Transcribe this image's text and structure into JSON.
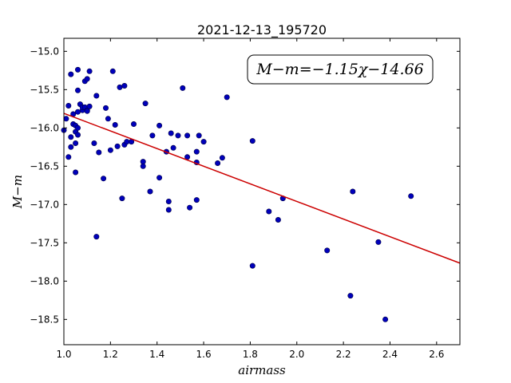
{
  "chart_data": {
    "type": "scatter",
    "title": "2021-12-13_195720",
    "xlabel": "airmass",
    "ylabel": "M−m",
    "xlim": [
      1.0,
      2.7
    ],
    "ylim": [
      -18.83,
      -14.83
    ],
    "y_inverted": true,
    "xticks": [
      1.0,
      1.2,
      1.4,
      1.6,
      1.8,
      2.0,
      2.2,
      2.4,
      2.6
    ],
    "xtick_labels": [
      "1.0",
      "1.2",
      "1.4",
      "1.6",
      "1.8",
      "2.0",
      "2.2",
      "2.4",
      "2.6"
    ],
    "yticks": [
      -15.0,
      -15.5,
      -16.0,
      -16.5,
      -17.0,
      -17.5,
      -18.0,
      -18.5
    ],
    "ytick_labels": [
      "−15.0",
      "−15.5",
      "−16.0",
      "−16.5",
      "−17.0",
      "−17.5",
      "−18.0",
      "−18.5"
    ],
    "grid": false,
    "fit_annotation": "M−m=−1.15χ−14.66",
    "fit_line": {
      "slope": -1.15,
      "intercept": -14.66,
      "color": "#cc0000"
    },
    "point_color": "#0000bb",
    "points": [
      [
        1.0,
        -16.03
      ],
      [
        1.01,
        -15.88
      ],
      [
        1.02,
        -15.71
      ],
      [
        1.02,
        -16.38
      ],
      [
        1.03,
        -16.12
      ],
      [
        1.03,
        -16.25
      ],
      [
        1.03,
        -15.3
      ],
      [
        1.04,
        -15.95
      ],
      [
        1.04,
        -15.82
      ],
      [
        1.05,
        -15.97
      ],
      [
        1.05,
        -16.05
      ],
      [
        1.05,
        -16.2
      ],
      [
        1.05,
        -16.58
      ],
      [
        1.06,
        -15.79
      ],
      [
        1.06,
        -15.51
      ],
      [
        1.06,
        -16.09
      ],
      [
        1.06,
        -16.0
      ],
      [
        1.06,
        -15.24
      ],
      [
        1.07,
        -15.69
      ],
      [
        1.08,
        -15.77
      ],
      [
        1.08,
        -15.73
      ],
      [
        1.09,
        -15.39
      ],
      [
        1.09,
        -15.73
      ],
      [
        1.1,
        -15.77
      ],
      [
        1.1,
        -15.78
      ],
      [
        1.1,
        -15.36
      ],
      [
        1.11,
        -15.72
      ],
      [
        1.11,
        -15.26
      ],
      [
        1.13,
        -16.2
      ],
      [
        1.14,
        -15.58
      ],
      [
        1.14,
        -17.42
      ],
      [
        1.15,
        -16.32
      ],
      [
        1.17,
        -16.66
      ],
      [
        1.18,
        -15.74
      ],
      [
        1.19,
        -15.88
      ],
      [
        1.2,
        -16.29
      ],
      [
        1.21,
        -15.26
      ],
      [
        1.22,
        -15.96
      ],
      [
        1.23,
        -16.24
      ],
      [
        1.24,
        -15.47
      ],
      [
        1.25,
        -16.92
      ],
      [
        1.26,
        -15.45
      ],
      [
        1.26,
        -16.22
      ],
      [
        1.27,
        -16.18
      ],
      [
        1.29,
        -16.18
      ],
      [
        1.3,
        -15.95
      ],
      [
        1.34,
        -16.5
      ],
      [
        1.34,
        -16.44
      ],
      [
        1.35,
        -15.68
      ],
      [
        1.37,
        -16.83
      ],
      [
        1.38,
        -16.1
      ],
      [
        1.41,
        -16.65
      ],
      [
        1.41,
        -15.97
      ],
      [
        1.44,
        -16.31
      ],
      [
        1.45,
        -16.96
      ],
      [
        1.45,
        -17.07
      ],
      [
        1.46,
        -16.07
      ],
      [
        1.47,
        -16.26
      ],
      [
        1.49,
        -16.1
      ],
      [
        1.51,
        -15.48
      ],
      [
        1.53,
        -16.38
      ],
      [
        1.53,
        -16.1
      ],
      [
        1.54,
        -17.04
      ],
      [
        1.57,
        -16.94
      ],
      [
        1.57,
        -16.31
      ],
      [
        1.57,
        -16.45
      ],
      [
        1.58,
        -16.1
      ],
      [
        1.6,
        -16.18
      ],
      [
        1.66,
        -16.46
      ],
      [
        1.68,
        -16.39
      ],
      [
        1.7,
        -15.6
      ],
      [
        1.81,
        -16.17
      ],
      [
        1.81,
        -17.8
      ],
      [
        1.88,
        -17.09
      ],
      [
        1.92,
        -17.2
      ],
      [
        1.94,
        -16.92
      ],
      [
        2.13,
        -17.6
      ],
      [
        2.23,
        -18.19
      ],
      [
        2.24,
        -16.83
      ],
      [
        2.35,
        -17.49
      ],
      [
        2.38,
        -18.5
      ],
      [
        2.49,
        -16.89
      ]
    ]
  }
}
